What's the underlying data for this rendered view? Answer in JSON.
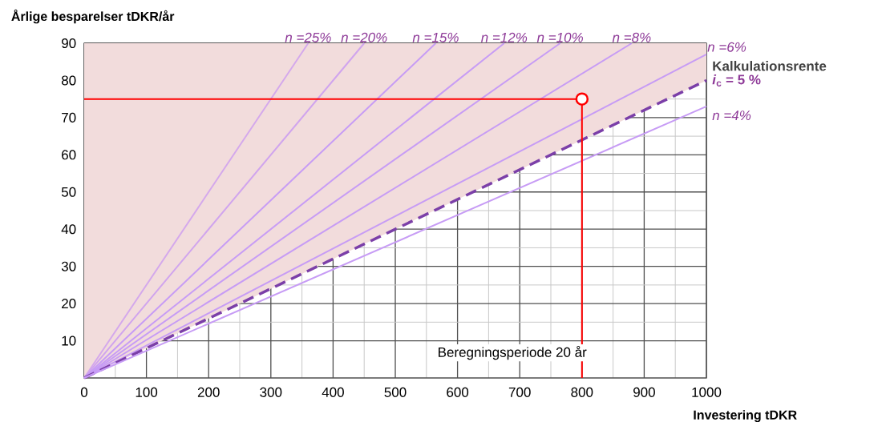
{
  "chart_data": {
    "type": "line",
    "xlabel": "Investering tDKR",
    "ylabel": "Årlige besparelser tDKR/år",
    "xlim": [
      0,
      1000
    ],
    "ylim": [
      0,
      90
    ],
    "xticks": [
      0,
      100,
      200,
      300,
      400,
      500,
      600,
      700,
      800,
      900,
      1000
    ],
    "yticks": [
      10,
      20,
      30,
      40,
      50,
      60,
      70,
      80,
      90
    ],
    "grid": true,
    "annotations": [
      "Kalkulationsrente",
      "Beregningsperiode 20 år"
    ],
    "series": [
      {
        "name": "n =25%",
        "color": "#d4a8ec",
        "x": [
          0,
          360
        ],
        "values": [
          0,
          90
        ]
      },
      {
        "name": "n =20%",
        "color": "#d0a4ee",
        "x": [
          0,
          450
        ],
        "values": [
          0,
          90
        ]
      },
      {
        "name": "n =15%",
        "color": "#c79cf5",
        "x": [
          0,
          565
        ],
        "values": [
          0,
          90
        ]
      },
      {
        "name": "n =12%",
        "color": "#c79cf5",
        "x": [
          0,
          675
        ],
        "values": [
          0,
          90
        ]
      },
      {
        "name": "n =10%",
        "color": "#c79cf5",
        "x": [
          0,
          765
        ],
        "values": [
          0,
          90
        ]
      },
      {
        "name": "n =8%",
        "color": "#c79cf5",
        "x": [
          0,
          880
        ],
        "values": [
          0,
          90
        ]
      },
      {
        "name": "n =6%",
        "color": "#c79cf5",
        "x": [
          0,
          1000
        ],
        "values": [
          0,
          87
        ]
      },
      {
        "name": "*i*$_{c}$ = 5 %",
        "color": "#7b3fa8",
        "line_style": "dashed",
        "x": [
          0,
          1000
        ],
        "values": [
          0,
          80
        ],
        "lower": [
          0,
          80
        ],
        "upper": [
          90,
          90
        ]
      },
      {
        "name": "n =4%",
        "color": "#c79cf5",
        "x": [
          0,
          1000
        ],
        "values": [
          0,
          73
        ]
      },
      {
        "color": "#ff0000",
        "x": [
          0,
          800,
          800
        ],
        "values": [
          75,
          75,
          0
        ]
      },
      {
        "type": "scatter",
        "marker": "circle",
        "color": "#ff0000",
        "x": [
          800
        ],
        "values": [
          75
        ]
      }
    ]
  }
}
